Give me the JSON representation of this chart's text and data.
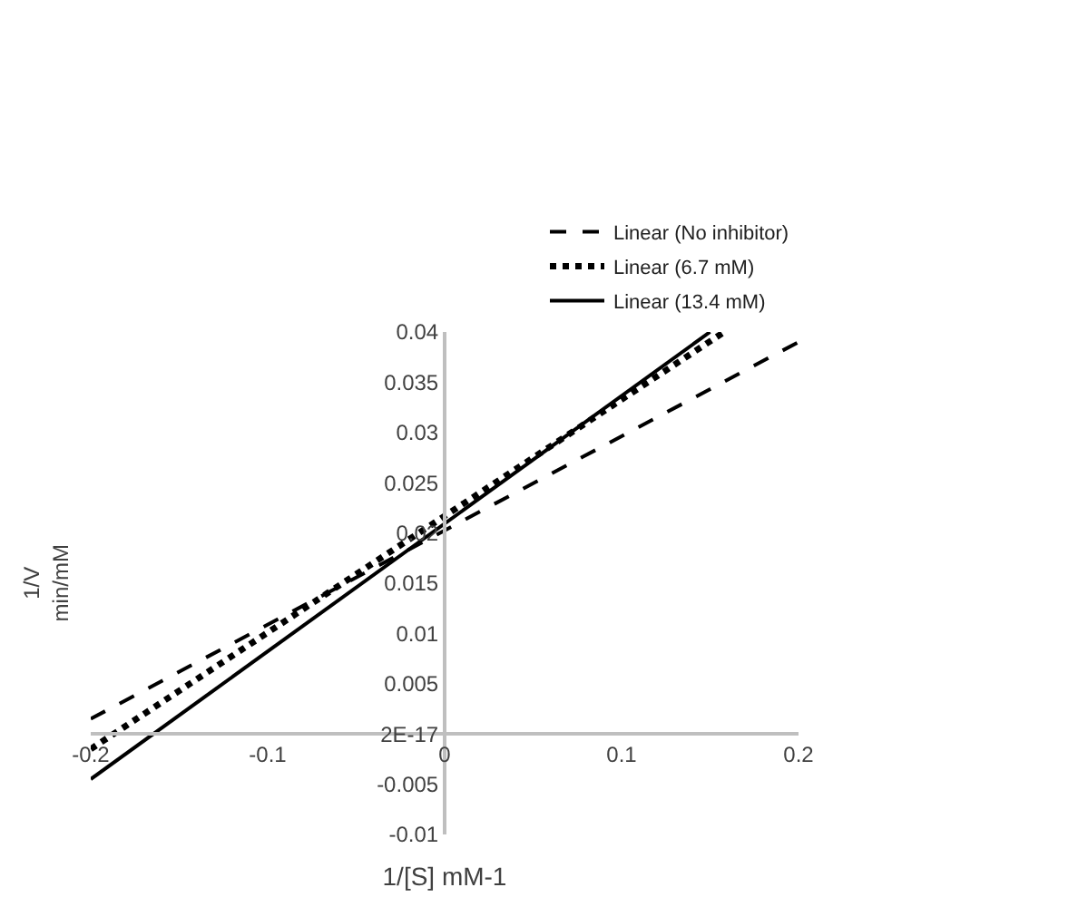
{
  "chart_data": {
    "type": "line",
    "xlabel": "1/[S] mM-1",
    "ylabel": "1/V\nmin/mM",
    "xlim": [
      -0.2,
      0.2
    ],
    "xticks": [
      -0.2,
      -0.1,
      0,
      0.1,
      0.2
    ],
    "ylim": [
      -0.01,
      0.04
    ],
    "yticks": [
      -0.01,
      -0.005,
      {
        "value": 0,
        "label": "2E-17"
      },
      0.005,
      0.01,
      0.015,
      0.02,
      0.025,
      0.03,
      0.035,
      0.04
    ],
    "grid": false,
    "legend": "top right",
    "marker": "none",
    "series": [
      {
        "name": "Linear (No inhibitor)",
        "color": "#000000",
        "line_style": "dashed",
        "x": [
          -0.2,
          0.2
        ],
        "values": [
          0.0015,
          0.039
        ]
      },
      {
        "name": "Linear (6.7 mM)",
        "color": "#000000",
        "line_style": "dotted",
        "x": [
          -0.2,
          0.158
        ],
        "values": [
          -0.0015,
          0.04
        ]
      },
      {
        "name": "Linear (13.4 mM)",
        "color": "#000000",
        "line_style": "solid",
        "x": [
          -0.2,
          0.15
        ],
        "values": [
          -0.0045,
          0.04
        ]
      }
    ]
  }
}
